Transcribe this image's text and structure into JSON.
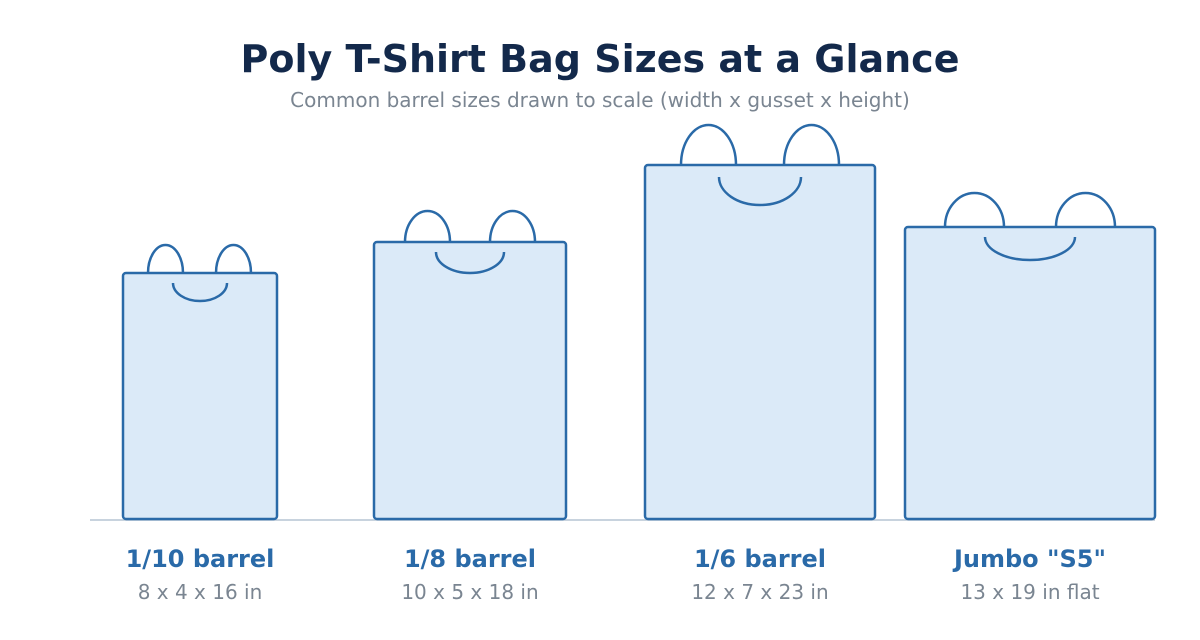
{
  "header": {
    "title": "Poly T-Shirt Bag Sizes at a Glance",
    "subtitle": "Common barrel sizes drawn to scale (width x gusset x height)"
  },
  "bags": [
    {
      "name": "1/10 barrel",
      "dims": "8 x 4 x 16 in"
    },
    {
      "name": "1/8 barrel",
      "dims": "10 x 5 x 18 in"
    },
    {
      "name": "1/6 barrel",
      "dims": "12 x 7 x 23 in"
    },
    {
      "name": "Jumbo \"S5\"",
      "dims": "13 x 19 in flat"
    }
  ]
}
